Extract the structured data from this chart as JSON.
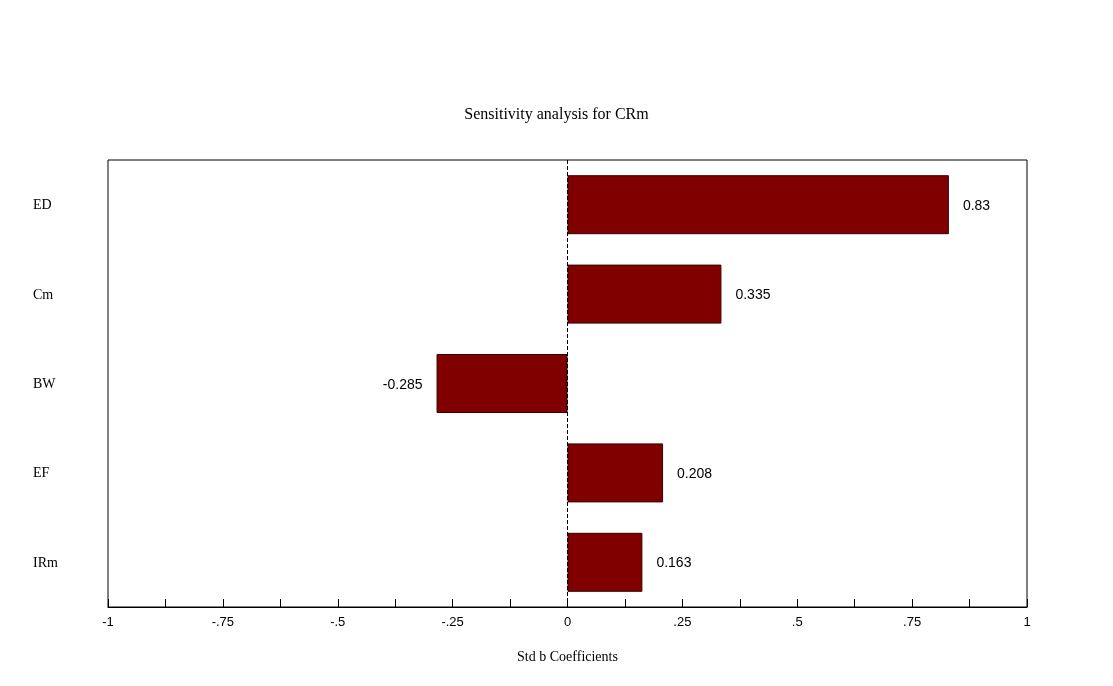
{
  "chart_data": {
    "type": "bar",
    "orientation": "horizontal",
    "title": "Sensitivity analysis for CRm",
    "xlabel": "Std b Coefficients",
    "categories": [
      "ED",
      "Cm",
      "BW",
      "EF",
      "IRm"
    ],
    "values": [
      0.83,
      0.335,
      -0.285,
      0.208,
      0.163
    ],
    "color": "#800000",
    "data_labels": true,
    "xlim": [
      -1,
      1
    ],
    "xticks": [
      {
        "value": -1,
        "label": "-1"
      },
      {
        "value": -0.875,
        "label": null
      },
      {
        "value": -0.75,
        "label": "-.75"
      },
      {
        "value": -0.625,
        "label": null
      },
      {
        "value": -0.5,
        "label": "-.5"
      },
      {
        "value": -0.375,
        "label": null
      },
      {
        "value": -0.25,
        "label": "-.25"
      },
      {
        "value": -0.125,
        "label": null
      },
      0,
      {
        "value": 0.125,
        "label": null
      },
      {
        "value": 0.25,
        "label": ".25"
      },
      {
        "value": 0.375,
        "label": null
      },
      {
        "value": 0.5,
        "label": ".5"
      },
      {
        "value": 0.625,
        "label": null
      },
      {
        "value": 0.75,
        "label": ".75"
      },
      {
        "value": 0.875,
        "label": null
      },
      1
    ],
    "ref_lines": [
      {
        "axis": "x",
        "value": 0,
        "line_style": "dashed",
        "color": "#000000"
      }
    ],
    "grid": false
  }
}
